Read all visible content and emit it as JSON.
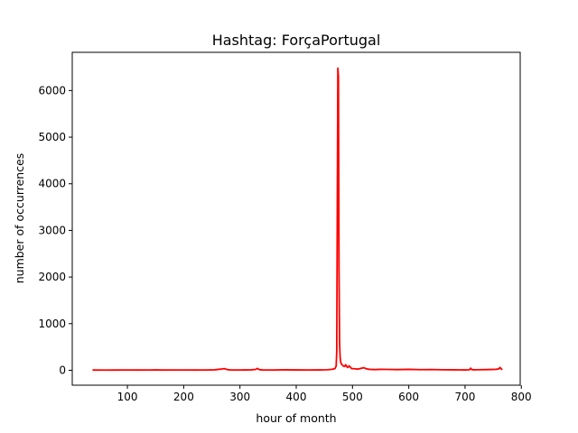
{
  "chart_data": {
    "type": "line",
    "title": "Hashtag: ForçaPortugal",
    "xlabel": "hour of month",
    "ylabel": "number of occurrences",
    "xlim": [
      2,
      798
    ],
    "ylim": [
      -320,
      6820
    ],
    "xticks": [
      100,
      200,
      300,
      400,
      500,
      600,
      700,
      800
    ],
    "yticks": [
      0,
      1000,
      2000,
      3000,
      4000,
      5000,
      6000
    ],
    "grid": false,
    "legend": "none",
    "series": [
      {
        "color": "#ff0000",
        "x": [
          38,
          60,
          80,
          100,
          120,
          140,
          150,
          160,
          180,
          200,
          220,
          240,
          255,
          262,
          268,
          272,
          276,
          280,
          290,
          300,
          310,
          320,
          328,
          331,
          334,
          340,
          360,
          380,
          400,
          420,
          440,
          455,
          462,
          466,
          469,
          471,
          472,
          473,
          474,
          475,
          476,
          477,
          478,
          479,
          480,
          482,
          484,
          486,
          488,
          490,
          492,
          494,
          496,
          498,
          500,
          505,
          510,
          515,
          520,
          525,
          530,
          540,
          550,
          560,
          580,
          600,
          620,
          640,
          660,
          680,
          700,
          708,
          710,
          712,
          716,
          720,
          740,
          755,
          760,
          762,
          764,
          766
        ],
        "y": [
          5,
          4,
          5,
          6,
          5,
          6,
          8,
          5,
          7,
          6,
          5,
          6,
          10,
          20,
          28,
          35,
          22,
          10,
          7,
          6,
          8,
          10,
          18,
          40,
          15,
          8,
          7,
          10,
          8,
          7,
          8,
          12,
          18,
          25,
          40,
          90,
          400,
          3500,
          6480,
          6300,
          2200,
          600,
          280,
          180,
          140,
          110,
          90,
          80,
          120,
          75,
          60,
          95,
          70,
          40,
          35,
          30,
          25,
          40,
          55,
          30,
          20,
          15,
          20,
          18,
          15,
          20,
          14,
          16,
          12,
          10,
          8,
          12,
          45,
          15,
          10,
          12,
          15,
          20,
          30,
          60,
          35,
          10
        ]
      }
    ]
  }
}
